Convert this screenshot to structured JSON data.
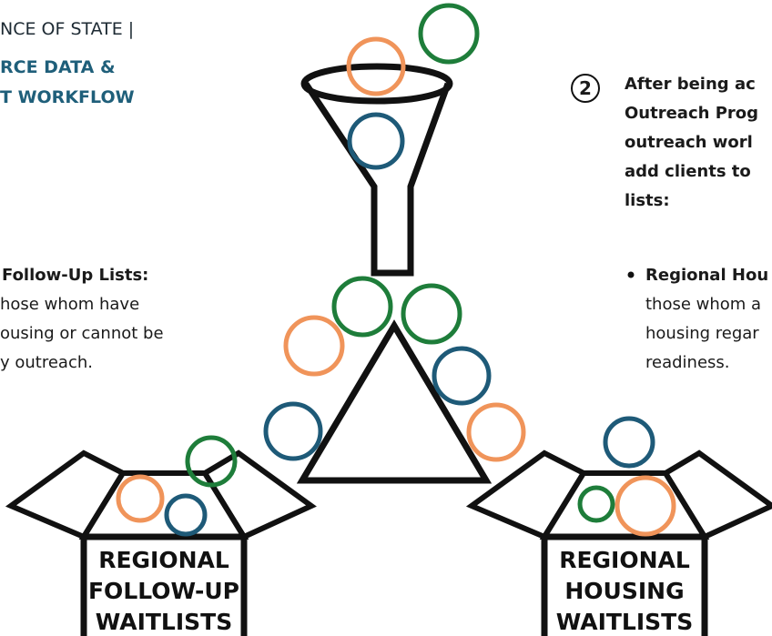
{
  "header": {
    "lines": [
      "NCE OF STATE |",
      "RCE DATA &",
      "T WORKFLOW"
    ]
  },
  "step": {
    "number": "2",
    "lines": [
      "After being ac",
      "Outreach Prog",
      "outreach worl",
      "add clients to",
      "lists:"
    ],
    "bullet": [
      "Regional Hou",
      "those whom a",
      "housing regar",
      "readiness."
    ]
  },
  "left_note": {
    "lines": [
      "Follow-Up Lists:",
      "hose whom have",
      "ousing or cannot be",
      "y outreach."
    ]
  },
  "boxes": [
    {
      "label": [
        "REGIONAL",
        "FOLLOW-UP",
        "WAITLISTS"
      ]
    },
    {
      "label": [
        "REGIONAL",
        "HOUSING",
        "WAITLISTS"
      ]
    }
  ]
}
